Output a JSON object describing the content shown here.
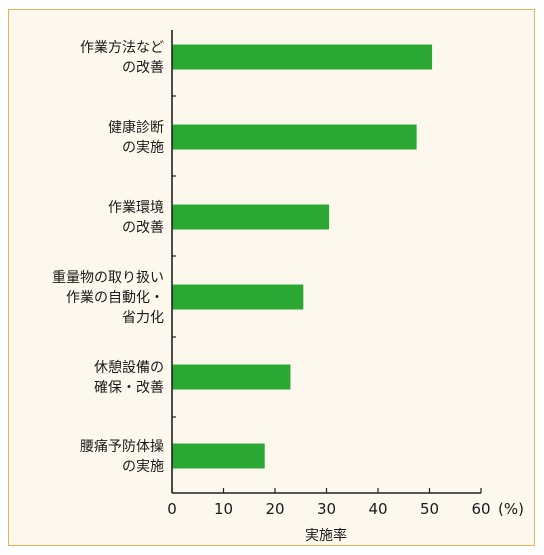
{
  "chart_data": {
    "type": "bar",
    "orientation": "horizontal",
    "categories": [
      [
        "作業方法など",
        "の改善"
      ],
      [
        "健康診断",
        "の実施"
      ],
      [
        "作業環境",
        "の改善"
      ],
      [
        "重量物の取り扱い",
        "作業の自動化・",
        "省力化"
      ],
      [
        "休憩設備の",
        "確保・改善"
      ],
      [
        "腰痛予防体操",
        "の実施"
      ]
    ],
    "values": [
      50.5,
      47.5,
      30.5,
      25.5,
      23,
      18
    ],
    "xlim": [
      0,
      60
    ],
    "xticks": [
      "0",
      "10",
      "20",
      "30",
      "40",
      "50",
      "60"
    ],
    "unit": "(%)",
    "xlabel": "実施率",
    "bar_color": "#2aa833",
    "grid": false
  }
}
